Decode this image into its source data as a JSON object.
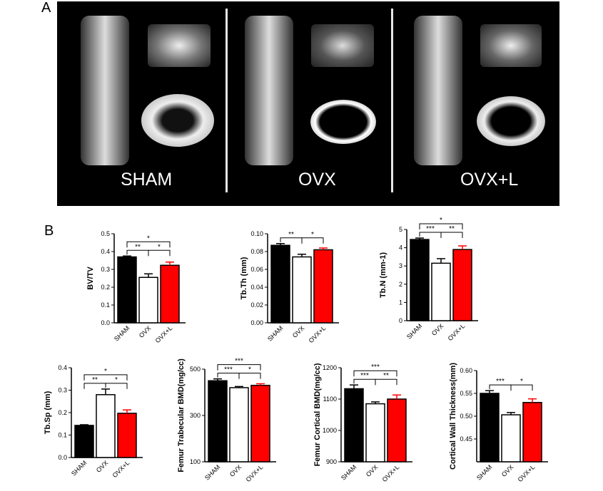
{
  "panel_a_label": "A",
  "panel_b_label": "B",
  "groups": [
    "SHAM",
    "OVX",
    "OVX+L"
  ],
  "colors": {
    "sham": "#000000",
    "ovx": "#ffffff",
    "ovxl": "#ff0000"
  },
  "chart_data": [
    {
      "type": "bar",
      "ylabel": "BV/TV",
      "categories": [
        "SHAM",
        "OVX",
        "OVX+L"
      ],
      "values": [
        0.37,
        0.255,
        0.323
      ],
      "errors": [
        0.005,
        0.02,
        0.018
      ],
      "ylim": [
        0.0,
        0.5
      ],
      "ticks": [
        "0.0",
        "0.1",
        "0.2",
        "0.3",
        "0.4",
        "0.5"
      ],
      "tickvals": [
        0,
        0.1,
        0.2,
        0.3,
        0.4,
        0.5
      ],
      "sig": [
        {
          "from": 0,
          "to": 1,
          "label": "**",
          "level": 0
        },
        {
          "from": 1,
          "to": 2,
          "label": "*",
          "level": 0
        },
        {
          "from": 0,
          "to": 2,
          "label": "*",
          "level": 1
        }
      ]
    },
    {
      "type": "bar",
      "ylabel": "Tb.Th (mm)",
      "categories": [
        "SHAM",
        "OVX",
        "OVX+L"
      ],
      "values": [
        0.087,
        0.074,
        0.082
      ],
      "errors": [
        0.002,
        0.003,
        0.002
      ],
      "ylim": [
        0.0,
        0.1
      ],
      "ticks": [
        "0.00",
        "0.02",
        "0.04",
        "0.06",
        "0.08",
        "0.10"
      ],
      "tickvals": [
        0,
        0.02,
        0.04,
        0.06,
        0.08,
        0.1
      ],
      "sig": [
        {
          "from": 0,
          "to": 1,
          "label": "**",
          "level": 0
        },
        {
          "from": 1,
          "to": 2,
          "label": "*",
          "level": 0
        }
      ]
    },
    {
      "type": "bar",
      "ylabel": "Tb.N (mm-1)",
      "categories": [
        "SHAM",
        "OVX",
        "OVX+L"
      ],
      "values": [
        4.45,
        3.15,
        3.9
      ],
      "errors": [
        0.08,
        0.25,
        0.2
      ],
      "ylim": [
        0,
        5
      ],
      "ticks": [
        "0",
        "1",
        "2",
        "3",
        "4",
        "5"
      ],
      "tickvals": [
        0,
        1,
        2,
        3,
        4,
        5
      ],
      "sig": [
        {
          "from": 0,
          "to": 1,
          "label": "***",
          "level": 0
        },
        {
          "from": 1,
          "to": 2,
          "label": "**",
          "level": 0
        },
        {
          "from": 0,
          "to": 2,
          "label": "*",
          "level": 1
        }
      ]
    },
    {
      "type": "bar",
      "ylabel": "Tb.Sp (mm)",
      "categories": [
        "SHAM",
        "OVX",
        "OVX+L"
      ],
      "values": [
        0.143,
        0.28,
        0.197
      ],
      "errors": [
        0.003,
        0.025,
        0.015
      ],
      "ylim": [
        0.0,
        0.4
      ],
      "ticks": [
        "0.0",
        "0.1",
        "0.2",
        "0.3",
        "0.4"
      ],
      "tickvals": [
        0,
        0.1,
        0.2,
        0.3,
        0.4
      ],
      "sig": [
        {
          "from": 0,
          "to": 1,
          "label": "**",
          "level": 0
        },
        {
          "from": 1,
          "to": 2,
          "label": "*",
          "level": 0
        },
        {
          "from": 0,
          "to": 2,
          "label": "*",
          "level": 1
        }
      ]
    },
    {
      "type": "bar",
      "ylabel": "Femur Trabecular BMD(mg/cc)",
      "categories": [
        "SHAM",
        "OVX",
        "OVX+L"
      ],
      "values": [
        450,
        420,
        430
      ],
      "errors": [
        8,
        5,
        7
      ],
      "ylim": [
        100,
        500
      ],
      "ticks": [
        "100",
        "300",
        "500"
      ],
      "tickvals": [
        100,
        300,
        500
      ],
      "sig": [
        {
          "from": 0,
          "to": 1,
          "label": "***",
          "level": 0
        },
        {
          "from": 1,
          "to": 2,
          "label": "*",
          "level": 0
        },
        {
          "from": 0,
          "to": 2,
          "label": "***",
          "level": 1
        }
      ]
    },
    {
      "type": "bar",
      "ylabel": "Femur Cortical BMD(mg/cc)",
      "categories": [
        "SHAM",
        "OVX",
        "OVX+L"
      ],
      "values": [
        1133,
        1085,
        1100
      ],
      "errors": [
        12,
        6,
        13
      ],
      "ylim": [
        900,
        1200
      ],
      "ticks": [
        "900",
        "1000",
        "1100",
        "1200"
      ],
      "tickvals": [
        900,
        1000,
        1100,
        1200
      ],
      "sig": [
        {
          "from": 0,
          "to": 1,
          "label": "***",
          "level": 0
        },
        {
          "from": 1,
          "to": 2,
          "label": "**",
          "level": 0
        },
        {
          "from": 0,
          "to": 2,
          "label": "***",
          "level": 1
        }
      ]
    },
    {
      "type": "bar",
      "ylabel": "Cortical Wall Thickness(mm)",
      "categories": [
        "SHAM",
        "OVX",
        "OVX+L"
      ],
      "values": [
        0.55,
        0.503,
        0.53
      ],
      "errors": [
        0.006,
        0.005,
        0.008
      ],
      "ylim": [
        0.4,
        0.6
      ],
      "ticks": [
        "0.45",
        "0.50",
        "0.55",
        "0.60"
      ],
      "tickvals": [
        0.45,
        0.5,
        0.55,
        0.6
      ],
      "sig": [
        {
          "from": 0,
          "to": 1,
          "label": "***",
          "level": 0
        },
        {
          "from": 1,
          "to": 2,
          "label": "*",
          "level": 0
        }
      ]
    }
  ]
}
